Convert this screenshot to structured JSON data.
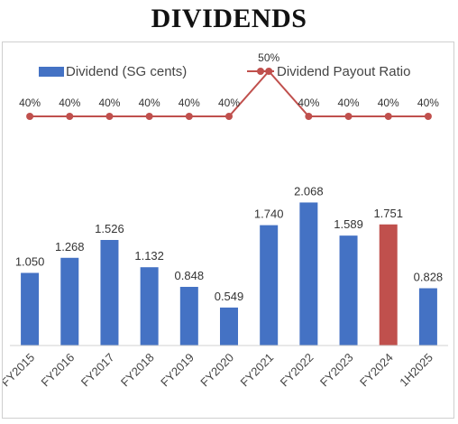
{
  "title": "DIVIDENDS",
  "chart_data": {
    "type": "bar",
    "categories": [
      "FY2015",
      "FY2016",
      "FY2017",
      "FY2018",
      "FY2019",
      "FY2020",
      "FY2021",
      "FY2022",
      "FY2023",
      "FY2024",
      "1H2025"
    ],
    "series": [
      {
        "name": "Dividend (SG cents)",
        "type": "bar",
        "values": [
          1.05,
          1.268,
          1.526,
          1.132,
          0.848,
          0.549,
          1.74,
          2.068,
          1.589,
          1.751,
          0.828
        ],
        "labels": [
          "1.050",
          "1.268",
          "1.526",
          "1.132",
          "0.848",
          "0.549",
          "1.740",
          "2.068",
          "1.589",
          "1.751",
          "0.828"
        ],
        "color": "#4472C4",
        "highlight_index": 9,
        "highlight_color": "#C0504D"
      },
      {
        "name": "Dividend Payout Ratio",
        "type": "line",
        "values": [
          40,
          40,
          40,
          40,
          40,
          40,
          50,
          40,
          40,
          40,
          40
        ],
        "labels": [
          "40%",
          "40%",
          "40%",
          "40%",
          "40%",
          "40%",
          "50%",
          "40%",
          "40%",
          "40%",
          "40%"
        ],
        "color": "#C0504D"
      }
    ],
    "ylim": [
      0,
      2.4
    ],
    "ratio_ylim": [
      30,
      55
    ],
    "grid": false,
    "legend": "top"
  }
}
